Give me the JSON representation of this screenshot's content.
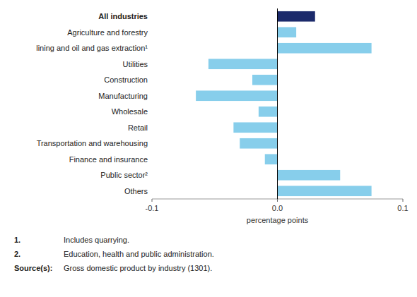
{
  "chart_data": {
    "type": "bar",
    "orientation": "horizontal",
    "categories": [
      "Others",
      "Public sector²",
      "Finance and insurance",
      "Transportation and warehousing",
      "Retail",
      "Wholesale",
      "Manufacturing",
      "Construction",
      "Utilities",
      "lining and oil and gas extraction¹",
      "Agriculture and forestry",
      "All industries"
    ],
    "values": [
      0.075,
      0.05,
      -0.01,
      -0.03,
      -0.035,
      -0.015,
      -0.065,
      -0.02,
      -0.055,
      0.075,
      0.015,
      0.03
    ],
    "colors": [
      "#87CEEB",
      "#87CEEB",
      "#87CEEB",
      "#87CEEB",
      "#87CEEB",
      "#87CEEB",
      "#87CEEB",
      "#87CEEB",
      "#87CEEB",
      "#87CEEB",
      "#87CEEB",
      "#1B2A6B"
    ],
    "xlim": [
      -0.1,
      0.1
    ],
    "xticks": [
      -0.1,
      {
        "value": 0.0,
        "label": "0.0"
      },
      0.1
    ],
    "xlabel": "percentage points",
    "grid": false,
    "annotations": [
      {
        "label": "1.",
        "text": "Includes quarrying."
      },
      {
        "label": "2.",
        "text": "Education, health and public administration."
      },
      {
        "label": "Source(s):",
        "text": "Gross domestic product by industry (1301)."
      }
    ]
  }
}
